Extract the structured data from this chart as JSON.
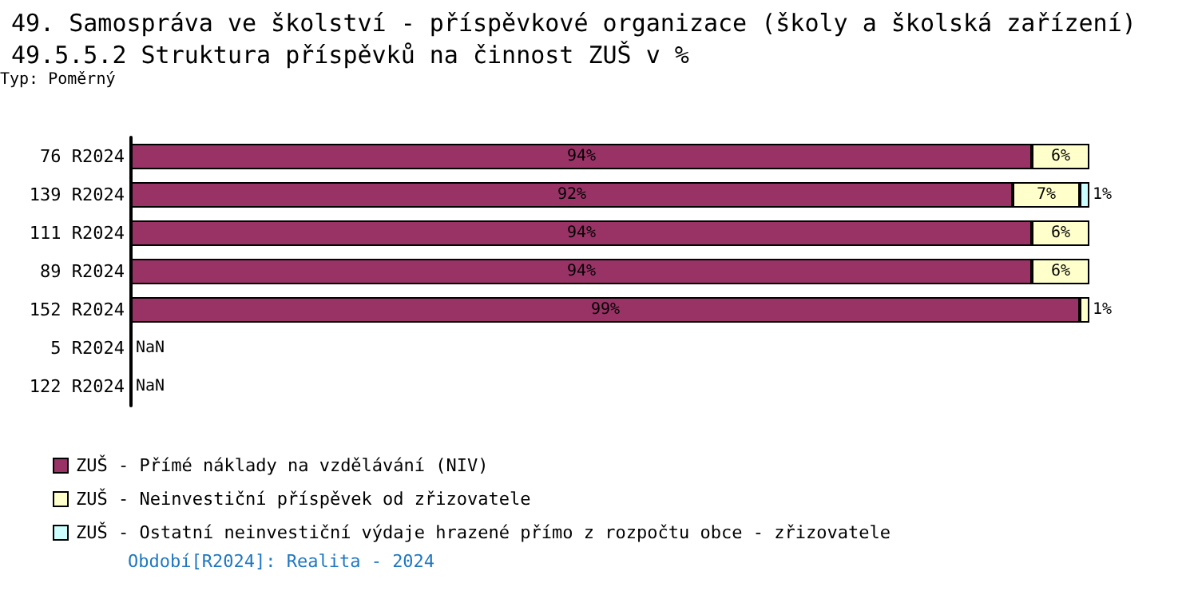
{
  "chart_data": {
    "type": "bar",
    "orientation": "horizontal",
    "stacked": true,
    "title": "49. Samospráva ve školství - příspěvkové organizace (školy a školská zařízení)",
    "subtitle": "49.5.5.2 Struktura příspěvků na činnost ZUŠ v %",
    "categories": [
      "76 R2024",
      "139 R2024",
      "111 R2024",
      "89 R2024",
      "152 R2024",
      "5 R2024",
      "122 R2024"
    ],
    "xlim": [
      0,
      100
    ],
    "tick_labels": "y",
    "series": [
      {
        "name": "ZUŠ - Přímé náklady na vzdělávání (NIV)",
        "color": "#993366",
        "values": [
          94,
          92,
          94,
          94,
          99,
          null,
          null
        ],
        "value_labels": [
          "94%",
          "92%",
          "94%",
          "94%",
          "99%",
          "NaN",
          "NaN"
        ]
      },
      {
        "name": "ZUŠ - Neinvestiční příspěvek od zřizovatele",
        "color": "#ffffcc",
        "values": [
          6,
          7,
          6,
          6,
          1,
          null,
          null
        ],
        "value_labels": [
          "6%",
          "7%",
          "6%",
          "6%",
          "1%",
          null,
          null
        ]
      },
      {
        "name": "ZUŠ - Ostatní neinvestiční výdaje hrazené přímo z rozpočtu obce - zřizovatele",
        "color": "#ccffff",
        "values": [
          null,
          1,
          null,
          null,
          null,
          null,
          null
        ],
        "value_labels": [
          null,
          "1%",
          null,
          null,
          null,
          null,
          null
        ]
      }
    ],
    "legend": "bottom left",
    "annotations": [
      "Typ: Poměrný",
      "Období[R2024]: Realita - 2024"
    ]
  }
}
